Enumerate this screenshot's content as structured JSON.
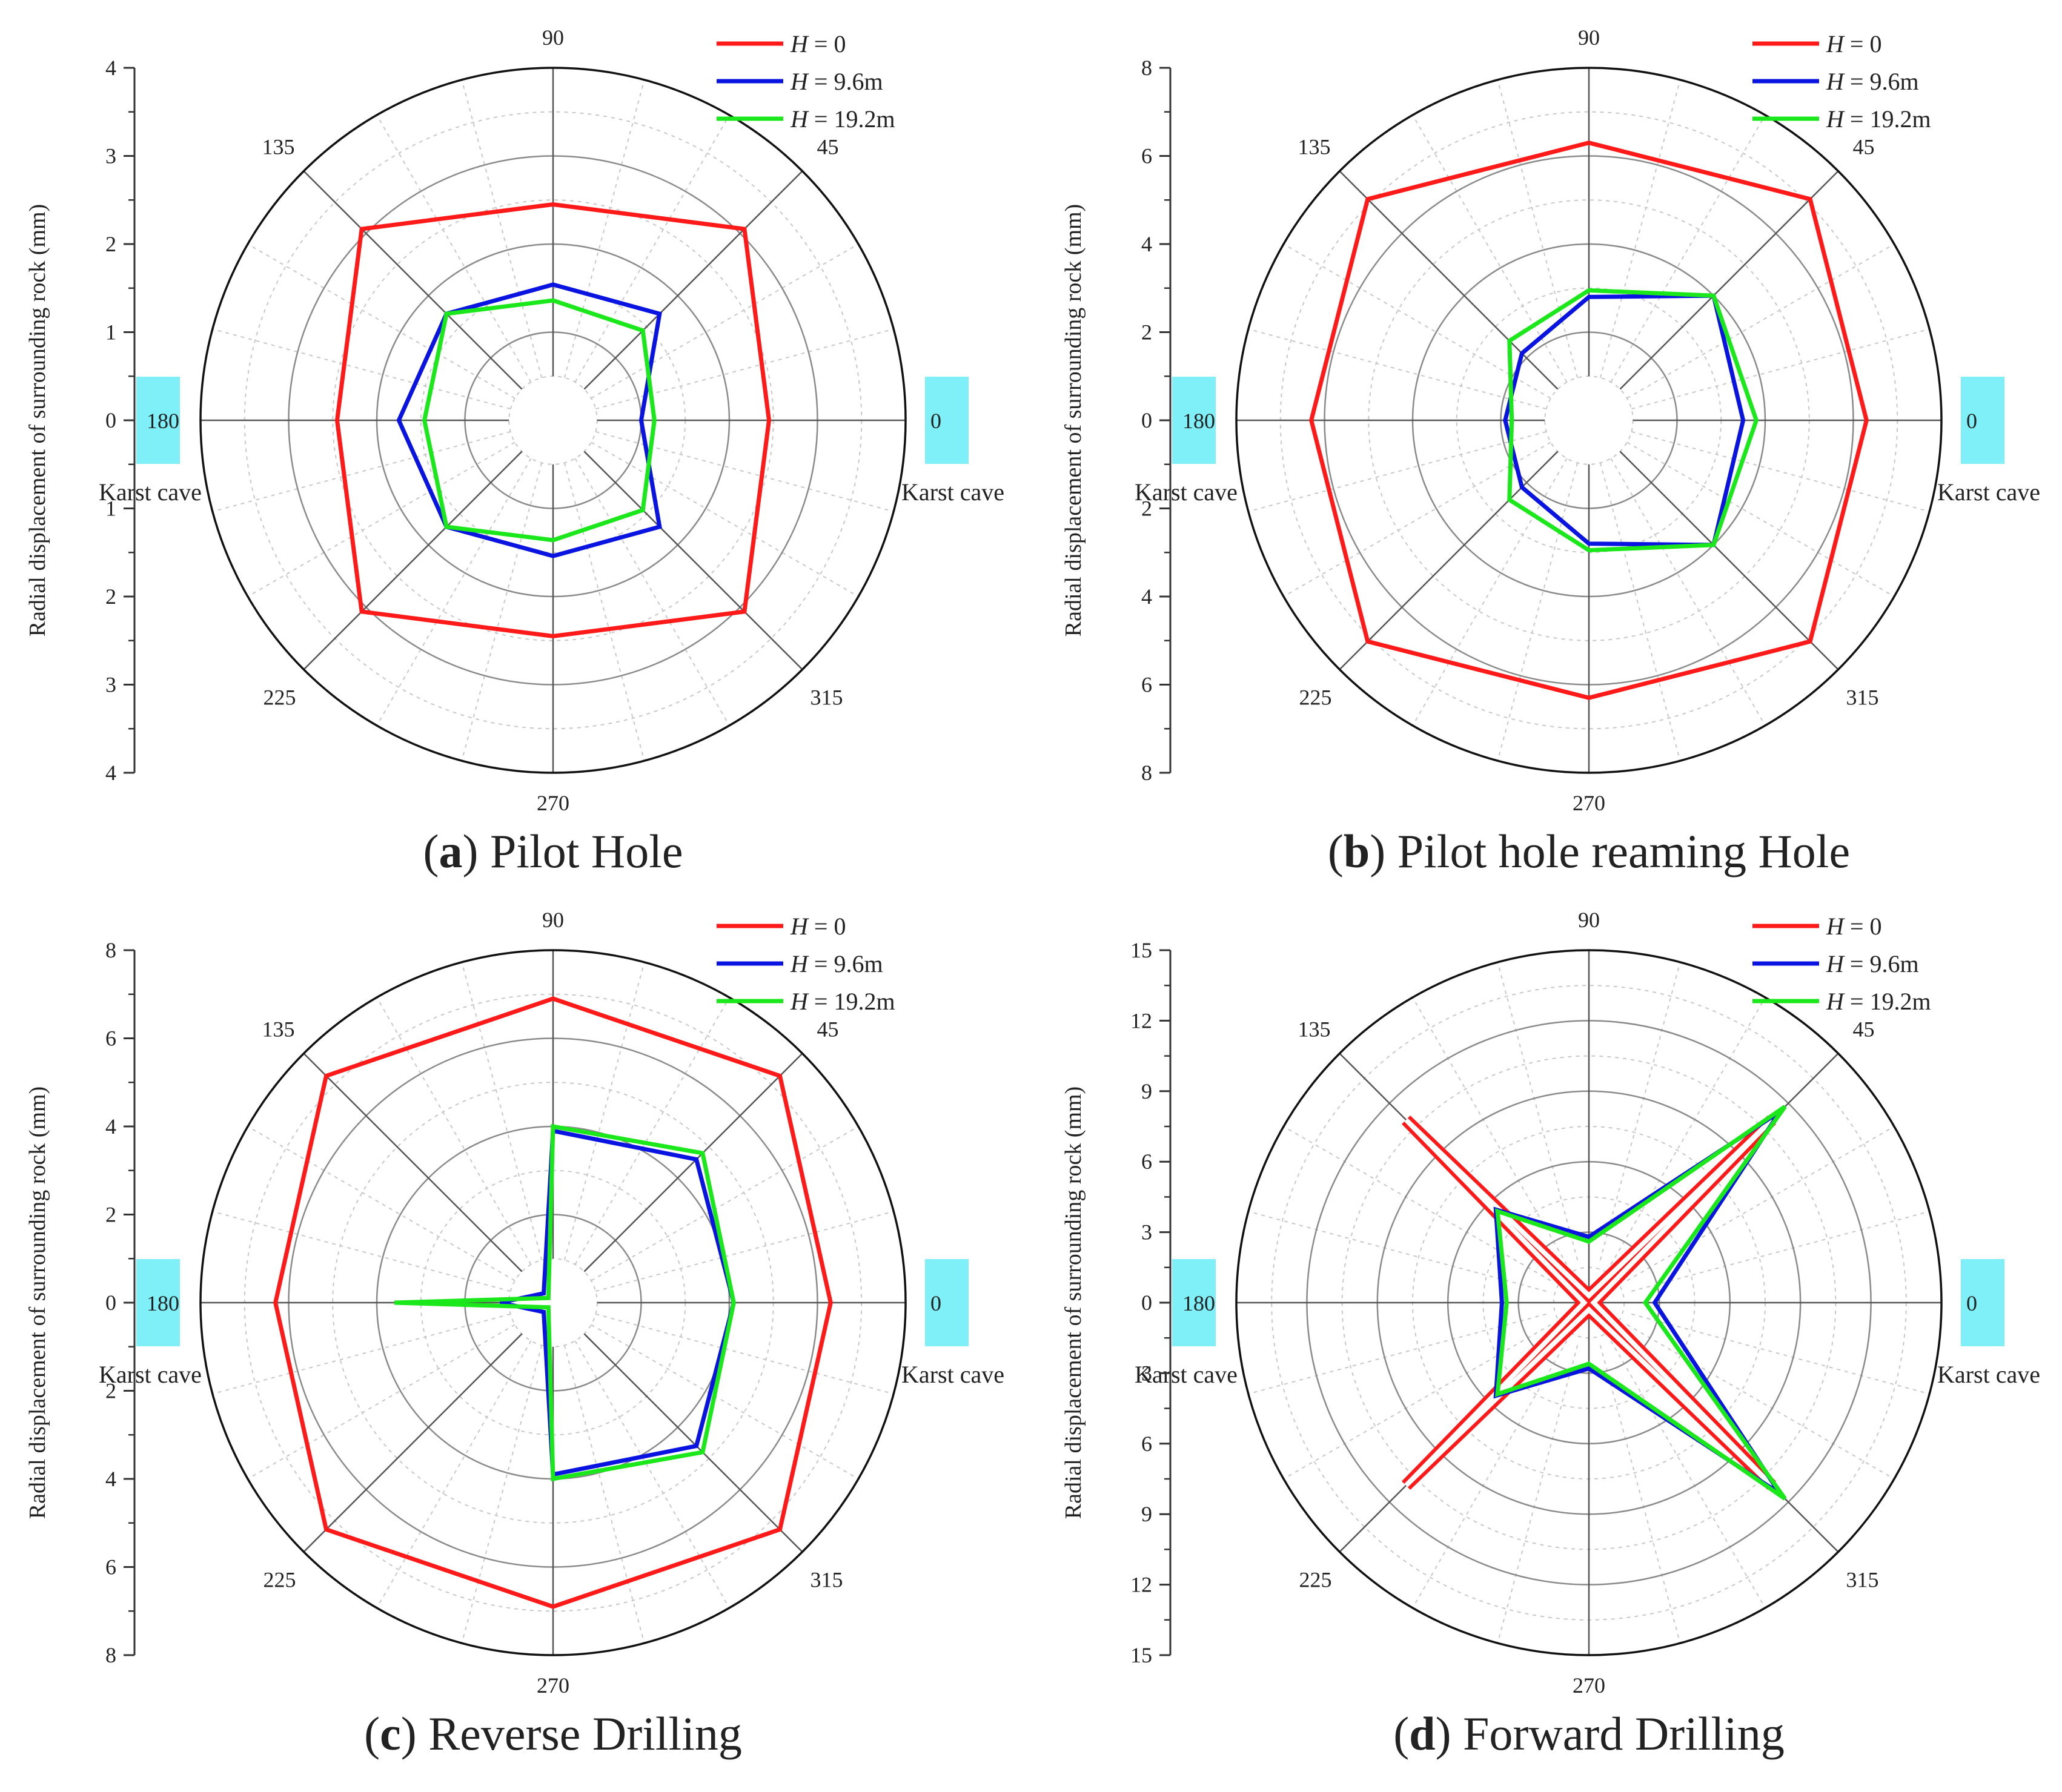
{
  "figure": {
    "legend_symbol": "H",
    "legend_eq": " = ",
    "cave_color": "#80F0F8"
  },
  "chart_data": [
    {
      "type": "polar-line",
      "panel": "a",
      "caption_letter": "a",
      "caption_text": "Pilot Hole",
      "ylabel": "Radial displacement of surrounding rock (mm)",
      "rmax": 4,
      "rings": [
        0.5,
        1,
        1.5,
        2,
        2.5,
        3,
        3.5,
        4
      ],
      "axis_ticks": [
        4,
        3,
        2,
        1,
        0,
        1,
        2,
        3,
        4
      ],
      "angle_labels": [
        "90",
        "135",
        "45",
        "180",
        "0",
        "225",
        "315",
        "270"
      ],
      "cave_labels": [
        "Karst cave",
        "Karst cave"
      ],
      "angles": [
        0,
        45,
        90,
        135,
        180,
        225,
        270,
        315
      ],
      "series": [
        {
          "name": "0",
          "color": "#FF1A1A",
          "values": [
            2.45,
            3.07,
            2.45,
            3.07,
            2.45,
            3.07,
            2.45,
            3.07
          ]
        },
        {
          "name": "9.6m",
          "color": "#0A14E0",
          "values": [
            1.0,
            1.71,
            1.54,
            1.71,
            1.75,
            1.71,
            1.54,
            1.71
          ]
        },
        {
          "name": "19.2m",
          "color": "#1AE81A",
          "values": [
            1.15,
            1.44,
            1.36,
            1.71,
            1.46,
            1.71,
            1.36,
            1.44
          ]
        }
      ]
    },
    {
      "type": "polar-line",
      "panel": "b",
      "caption_letter": "b",
      "caption_text": "Pilot hole reaming Hole",
      "ylabel": "Radial displacement of surrounding rock (mm)",
      "rmax": 8,
      "rings": [
        1,
        2,
        3,
        4,
        5,
        6,
        7,
        8
      ],
      "axis_ticks": [
        8,
        6,
        4,
        2,
        0,
        2,
        4,
        6,
        8
      ],
      "angle_labels": [
        "90",
        "135",
        "45",
        "180",
        "0",
        "225",
        "315",
        "270"
      ],
      "cave_labels": [
        "Karst cave",
        "Karst cave"
      ],
      "angles": [
        0,
        45,
        90,
        135,
        180,
        225,
        270,
        315
      ],
      "series": [
        {
          "name": "0",
          "color": "#FF1A1A",
          "values": [
            6.3,
            7.1,
            6.3,
            7.1,
            6.3,
            7.1,
            6.3,
            7.1
          ]
        },
        {
          "name": "9.6m",
          "color": "#0A14E0",
          "values": [
            3.5,
            4.0,
            2.8,
            2.15,
            1.9,
            2.15,
            2.8,
            4.0
          ]
        },
        {
          "name": "19.2m",
          "color": "#1AE81A",
          "values": [
            3.8,
            4.0,
            2.95,
            2.55,
            1.75,
            2.55,
            2.95,
            4.0
          ]
        }
      ]
    },
    {
      "type": "polar-line",
      "panel": "c",
      "caption_letter": "c",
      "caption_text": "Reverse Drilling",
      "ylabel": "Radial displacement of surrounding rock (mm)",
      "rmax": 8,
      "rings": [
        1,
        2,
        3,
        4,
        5,
        6,
        7,
        8
      ],
      "axis_ticks": [
        8,
        6,
        4,
        2,
        0,
        2,
        4,
        6,
        8
      ],
      "angle_labels": [
        "90",
        "135",
        "45",
        "180",
        "0",
        "225",
        "315",
        "270"
      ],
      "cave_labels": [
        "Karst cave",
        "Karst cave"
      ],
      "angles": [
        0,
        45,
        90,
        135,
        180,
        225,
        270,
        315
      ],
      "series": [
        {
          "name": "0",
          "color": "#FF1A1A",
          "values": [
            6.3,
            7.28,
            6.9,
            7.28,
            6.3,
            7.28,
            6.9,
            7.28
          ]
        },
        {
          "name": "9.6m",
          "color": "#0A14E0",
          "values": [
            4.1,
            4.6,
            3.9,
            0.3,
            1.2,
            0.3,
            3.9,
            4.6
          ]
        },
        {
          "name": "19.2m",
          "color": "#1AE81A",
          "values": [
            4.1,
            4.8,
            4.0,
            0.15,
            3.6,
            0.15,
            4.0,
            4.8
          ]
        }
      ]
    },
    {
      "type": "polar-line",
      "panel": "d",
      "caption_letter": "d",
      "caption_text": "Forward Drilling",
      "ylabel": "Radial displacement of surrounding rock (mm)",
      "rmax": 15,
      "rings": [
        3,
        6,
        9,
        12,
        15
      ],
      "minor_rings": [
        1.5,
        4.5,
        7.5,
        10.5,
        13.5
      ],
      "axis_ticks": [
        15,
        12,
        9,
        6,
        3,
        0,
        3,
        6,
        9,
        12,
        15
      ],
      "angle_labels": [
        "90",
        "135",
        "45",
        "180",
        "0",
        "225",
        "315",
        "270"
      ],
      "cave_labels": [
        "Karst cave",
        "Karst cave"
      ],
      "angles": [
        0,
        45,
        90,
        135,
        180,
        225,
        270,
        315
      ],
      "series": [
        {
          "name": "0",
          "color": "#FF1A1A",
          "values": [
            0.2,
            11.0,
            0.3,
            11.0,
            0.2,
            11.0,
            0.3,
            11.0
          ],
          "double_stroke": true
        },
        {
          "name": "9.6m",
          "color": "#0A14E0",
          "values": [
            2.8,
            11.5,
            2.8,
            5.6,
            3.7,
            5.6,
            2.8,
            11.5
          ]
        },
        {
          "name": "19.2m",
          "color": "#1AE81A",
          "values": [
            2.4,
            11.8,
            2.6,
            5.5,
            3.5,
            5.5,
            2.6,
            11.8
          ]
        }
      ]
    }
  ]
}
